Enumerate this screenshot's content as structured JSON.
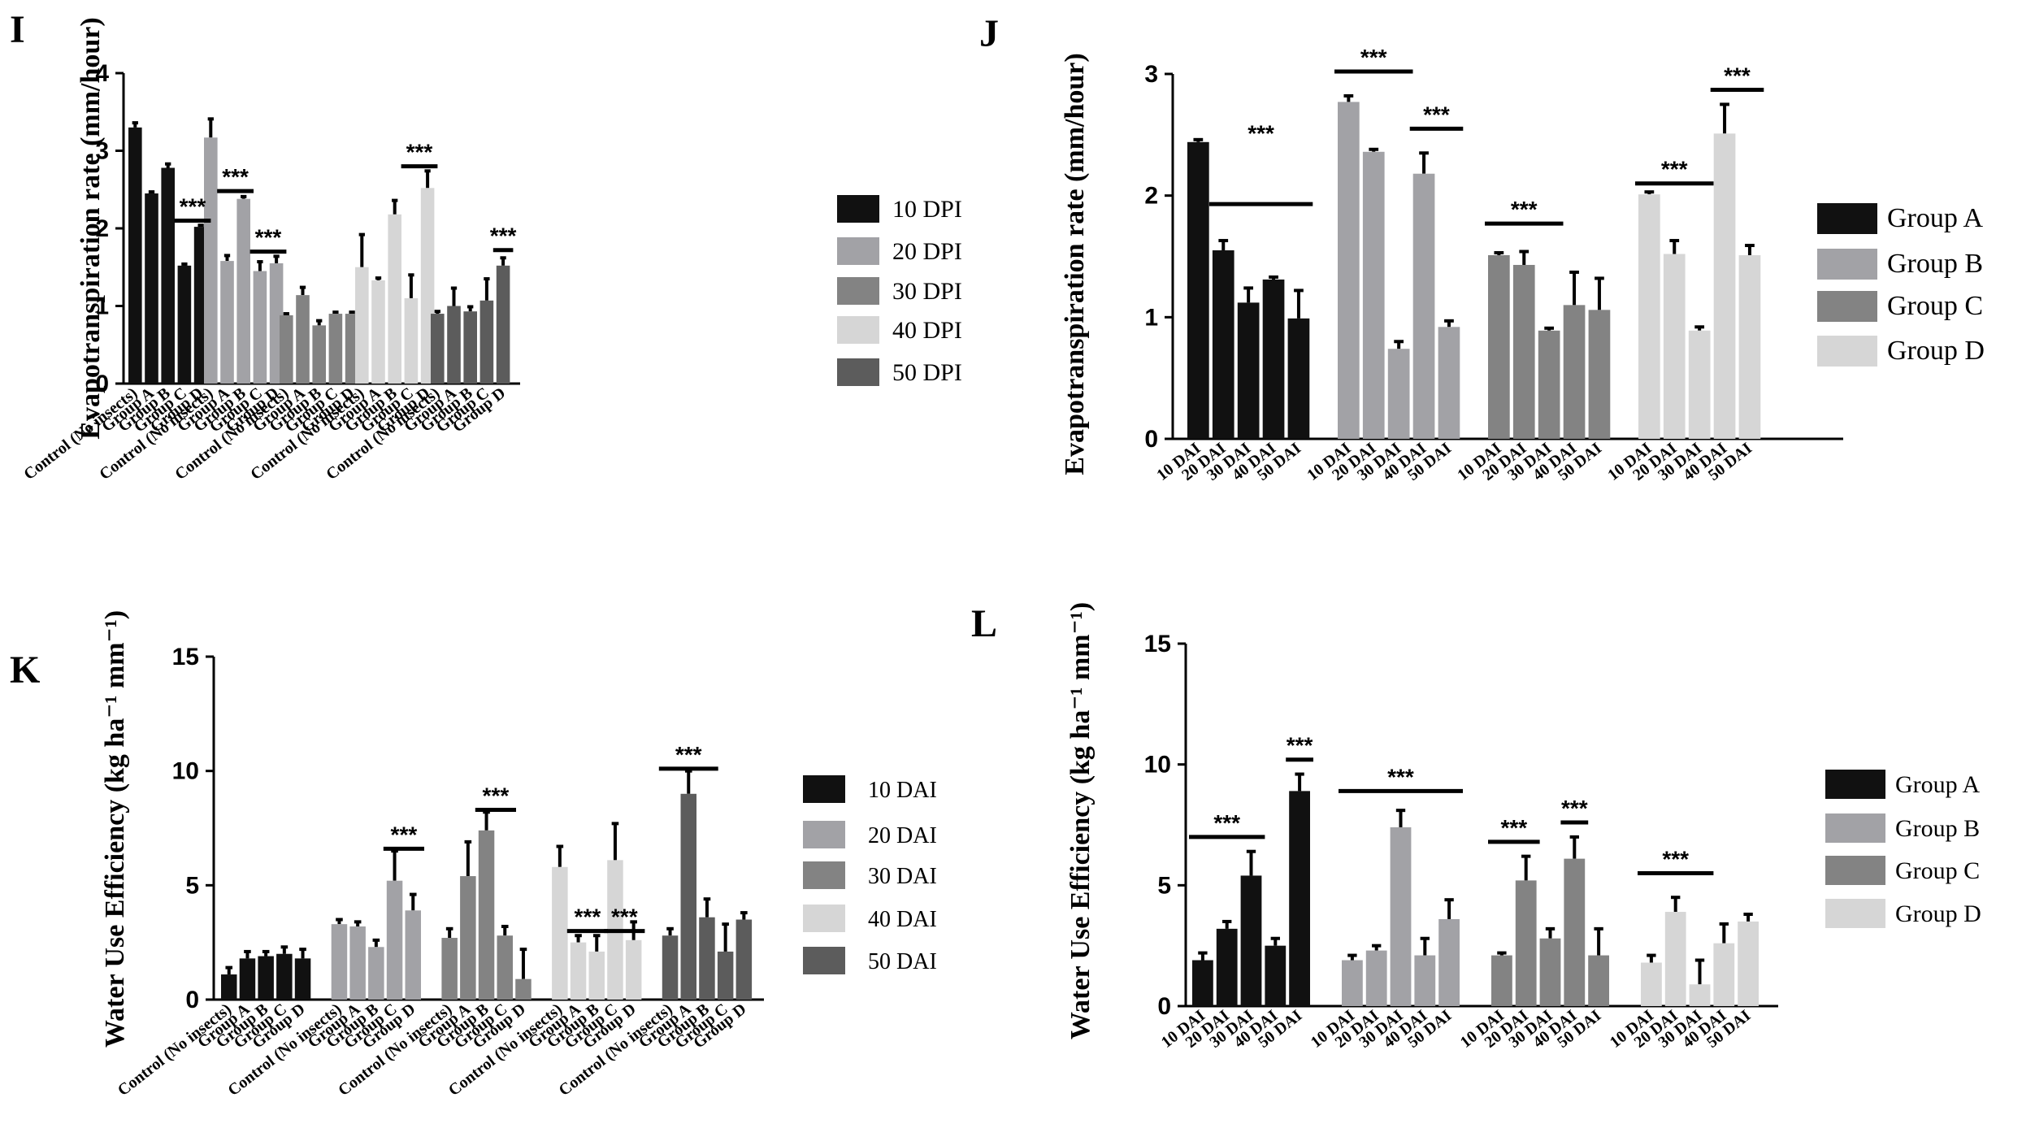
{
  "chart_data": [
    {
      "id": "I",
      "panel_label": "I",
      "type": "bar",
      "ylabel": "Evapotranspiration rate (mm/hour)",
      "ylim": [
        0,
        4
      ],
      "yticks": [
        0,
        1,
        2,
        3,
        4
      ],
      "groups": [
        "10 DPI",
        "20 DPI",
        "30 DPI",
        "40 DPI",
        "50 DPI"
      ],
      "group_colors": [
        "#111111",
        "#a2a2a6",
        "#838383",
        "#d6d6d6",
        "#5c5c5c"
      ],
      "categories": [
        "Control (No insects)",
        "Group A",
        "Group B",
        "Group C",
        "Group D"
      ],
      "values": [
        [
          3.3,
          2.45,
          2.78,
          1.52,
          2.02
        ],
        [
          3.17,
          1.58,
          2.38,
          1.45,
          1.55
        ],
        [
          0.88,
          1.14,
          0.75,
          0.9,
          0.9
        ],
        [
          1.5,
          1.33,
          2.18,
          1.1,
          2.52
        ],
        [
          0.9,
          1.0,
          0.93,
          1.07,
          1.52
        ]
      ],
      "errors": [
        [
          0.06,
          0.02,
          0.05,
          0.02,
          0.02
        ],
        [
          0.24,
          0.07,
          0.03,
          0.12,
          0.09
        ],
        [
          0.02,
          0.1,
          0.06,
          0.02,
          0.02
        ],
        [
          0.42,
          0.03,
          0.18,
          0.3,
          0.22
        ],
        [
          0.03,
          0.23,
          0.06,
          0.28,
          0.1
        ]
      ],
      "legend": [
        "10 DPI",
        "20 DPI",
        "30 DPI",
        "40 DPI",
        "50 DPI"
      ],
      "annotations": [
        {
          "text": "***",
          "group": 0,
          "from": 3,
          "to": 4,
          "y": 2.1
        },
        {
          "text": "***",
          "group": 1,
          "from": 1,
          "to": 2,
          "y": 2.48
        },
        {
          "text": "***",
          "group": 1,
          "from": 3,
          "to": 4,
          "y": 1.7
        },
        {
          "text": "***",
          "group": 3,
          "from": 3,
          "to": 4,
          "y": 2.8
        },
        {
          "text": "***",
          "group": 4,
          "from": 4,
          "to": 4,
          "y": 1.72
        }
      ]
    },
    {
      "id": "J",
      "panel_label": "J",
      "type": "bar",
      "ylabel": "Evapotranspiration rate (mm/hour)",
      "ylim": [
        0,
        3
      ],
      "yticks": [
        0,
        1,
        2,
        3
      ],
      "groups": [
        "Group A",
        "Group B",
        "Group C",
        "Group D"
      ],
      "group_colors": [
        "#111111",
        "#a2a2a6",
        "#838383",
        "#d6d6d6"
      ],
      "categories": [
        "10 DAI",
        "20 DAI",
        "30 DAI",
        "40 DAI",
        "50 DAI"
      ],
      "values": [
        [
          2.44,
          1.55,
          1.12,
          1.31,
          0.99
        ],
        [
          2.77,
          2.36,
          0.74,
          2.18,
          0.92
        ],
        [
          1.51,
          1.43,
          0.89,
          1.1,
          1.06
        ],
        [
          2.01,
          1.52,
          0.89,
          2.51,
          1.51
        ]
      ],
      "errors": [
        [
          0.02,
          0.08,
          0.12,
          0.02,
          0.23
        ],
        [
          0.05,
          0.02,
          0.06,
          0.17,
          0.05
        ],
        [
          0.02,
          0.11,
          0.02,
          0.27,
          0.26
        ],
        [
          0.02,
          0.11,
          0.03,
          0.24,
          0.08
        ]
      ],
      "legend": [
        "Group A",
        "Group B",
        "Group C",
        "Group D"
      ],
      "annotations": [
        {
          "text": "***",
          "group": 0,
          "from": 1,
          "to": 4,
          "y": 1.93,
          "label_y": 2.45
        },
        {
          "text": "***",
          "group": 1,
          "from": 0,
          "to": 2,
          "y": 3.02
        },
        {
          "text": "***",
          "group": 1,
          "from": 3,
          "to": 4,
          "y": 2.55
        },
        {
          "text": "***",
          "group": 2,
          "from": 0,
          "to": 2,
          "y": 1.77
        },
        {
          "text": "***",
          "group": 3,
          "from": 0,
          "to": 2,
          "y": 2.1
        },
        {
          "text": "***",
          "group": 3,
          "from": 3,
          "to": 4,
          "y": 2.87
        }
      ]
    },
    {
      "id": "K",
      "panel_label": "K",
      "type": "bar",
      "ylabel": "Water Use Efficiency (kg ha⁻¹ mm⁻¹)",
      "ylim": [
        0,
        15
      ],
      "yticks": [
        0,
        5,
        10,
        15
      ],
      "groups": [
        "10 DAI",
        "20 DAI",
        "30 DAI",
        "40 DAI",
        "50 DAI"
      ],
      "group_colors": [
        "#111111",
        "#a2a2a6",
        "#838383",
        "#d6d6d6",
        "#5c5c5c"
      ],
      "categories": [
        "Control (No insects)",
        "Group A",
        "Group B",
        "Group C",
        "Group D"
      ],
      "values": [
        [
          1.1,
          1.8,
          1.9,
          2.0,
          1.8
        ],
        [
          3.3,
          3.2,
          2.3,
          5.2,
          3.9
        ],
        [
          2.7,
          5.4,
          7.4,
          2.8,
          0.9
        ],
        [
          5.8,
          2.5,
          2.1,
          6.1,
          2.6
        ],
        [
          2.8,
          9.0,
          3.6,
          2.1,
          3.5
        ]
      ],
      "errors": [
        [
          0.3,
          0.3,
          0.2,
          0.3,
          0.4
        ],
        [
          0.2,
          0.2,
          0.3,
          1.3,
          0.7
        ],
        [
          0.4,
          1.5,
          0.8,
          0.4,
          1.3
        ],
        [
          0.9,
          0.3,
          0.7,
          1.6,
          0.8
        ],
        [
          0.3,
          1.0,
          0.8,
          1.2,
          0.3
        ]
      ],
      "legend": [
        "10 DAI",
        "20 DAI",
        "30 DAI",
        "40 DAI",
        "50 DAI"
      ],
      "annotations": [
        {
          "text": "***",
          "group": 1,
          "from": 3,
          "to": 4,
          "y": 6.6
        },
        {
          "text": "***",
          "group": 2,
          "from": 2,
          "to": 3,
          "y": 8.3
        },
        {
          "text": "***",
          "group": 3,
          "from": 1,
          "to": 2,
          "y": 3.0
        },
        {
          "text": "***",
          "group": 3,
          "from": 3,
          "to": 4,
          "y": 3.0
        },
        {
          "text": "***",
          "group": 4,
          "from": 0,
          "to": 2,
          "y": 10.1
        }
      ]
    },
    {
      "id": "L",
      "panel_label": "L",
      "type": "bar",
      "ylabel": "Water Use Efficiency (kg ha⁻¹ mm⁻¹)",
      "ylim": [
        0,
        15
      ],
      "yticks": [
        0,
        5,
        10,
        15
      ],
      "groups": [
        "Group A",
        "Group B",
        "Group C",
        "Group D"
      ],
      "group_colors": [
        "#111111",
        "#a2a2a6",
        "#838383",
        "#d6d6d6"
      ],
      "categories": [
        "10 DAI",
        "20 DAI",
        "30 DAI",
        "40 DAI",
        "50 DAI"
      ],
      "values": [
        [
          1.9,
          3.2,
          5.4,
          2.5,
          8.9
        ],
        [
          1.9,
          2.3,
          7.4,
          2.1,
          3.6
        ],
        [
          2.1,
          5.2,
          2.8,
          6.1,
          2.1
        ],
        [
          1.8,
          3.9,
          0.9,
          2.6,
          3.5
        ]
      ],
      "errors": [
        [
          0.3,
          0.3,
          1.0,
          0.3,
          0.7
        ],
        [
          0.2,
          0.2,
          0.7,
          0.7,
          0.8
        ],
        [
          0.1,
          1.0,
          0.4,
          0.9,
          1.1
        ],
        [
          0.3,
          0.6,
          1.0,
          0.8,
          0.3
        ]
      ],
      "legend": [
        "Group A",
        "Group B",
        "Group C",
        "Group D"
      ],
      "annotations": [
        {
          "text": "***",
          "group": 0,
          "from": 0,
          "to": 2,
          "y": 7.0
        },
        {
          "text": "***",
          "group": 0,
          "from": 4,
          "to": 4,
          "y": 10.2
        },
        {
          "text": "***",
          "group": 1,
          "from": 0,
          "to": 4,
          "y": 8.9
        },
        {
          "text": "***",
          "group": 2,
          "from": 0,
          "to": 1,
          "y": 6.8
        },
        {
          "text": "***",
          "group": 2,
          "from": 3,
          "to": 3,
          "y": 7.6
        },
        {
          "text": "***",
          "group": 3,
          "from": 0,
          "to": 2,
          "y": 5.5
        }
      ]
    }
  ]
}
